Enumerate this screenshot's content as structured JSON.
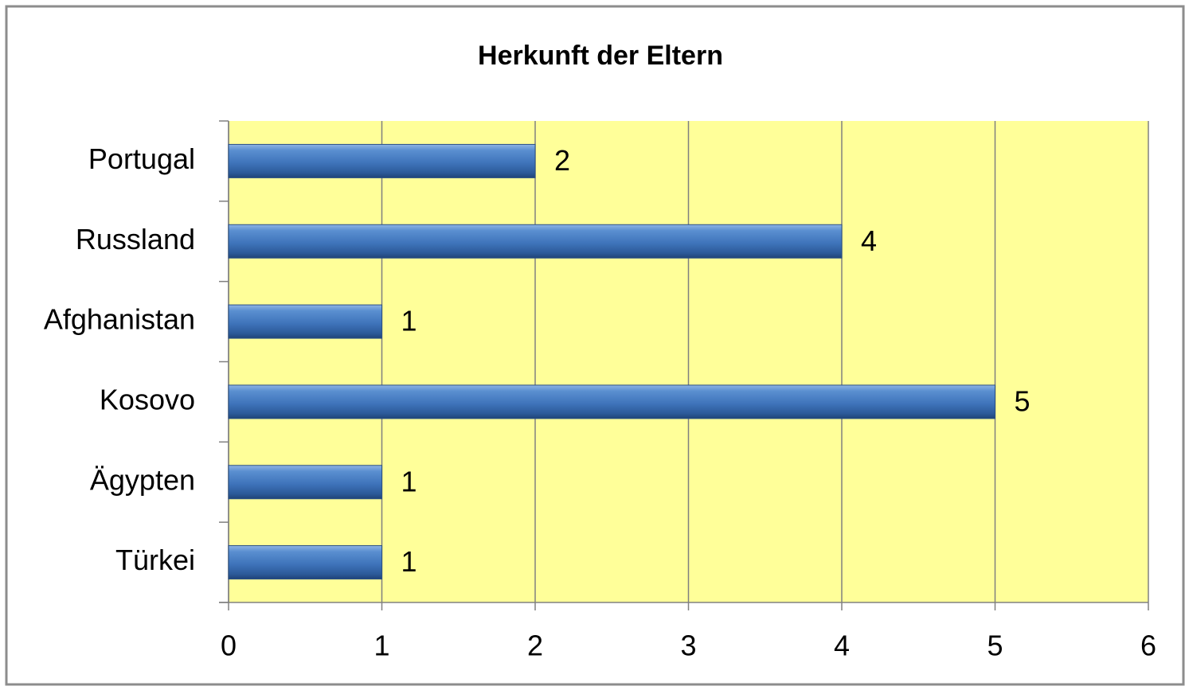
{
  "chart_data": {
    "type": "hbar",
    "title": "Herkunft der Eltern",
    "categories": [
      "Portugal",
      "Russland",
      "Afghanistan",
      "Kosovo",
      "Ägypten",
      "Türkei"
    ],
    "values": [
      2,
      4,
      1,
      5,
      1,
      1
    ],
    "color": "#4f81bd",
    "xlim": [
      0,
      6
    ],
    "xticks": [
      0,
      1,
      2,
      3,
      4,
      5,
      6
    ],
    "grid": true,
    "background": "#ffff99"
  }
}
